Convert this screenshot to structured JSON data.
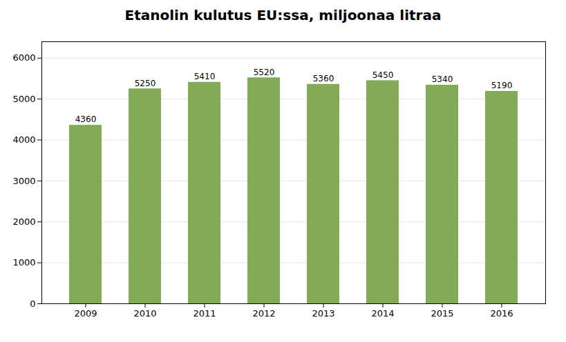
{
  "chart_data": {
    "type": "bar",
    "title": "Etanolin kulutus EU:ssa, miljoonaa litraa",
    "categories": [
      "2009",
      "2010",
      "2011",
      "2012",
      "2013",
      "2014",
      "2015",
      "2016"
    ],
    "values": [
      4360,
      5250,
      5410,
      5520,
      5360,
      5450,
      5340,
      5190
    ],
    "color": "#82aa57",
    "ylim": [
      0,
      6400
    ],
    "yticks": [
      0,
      1000,
      2000,
      3000,
      4000,
      5000,
      6000
    ],
    "grid": true,
    "data_labels": true
  }
}
